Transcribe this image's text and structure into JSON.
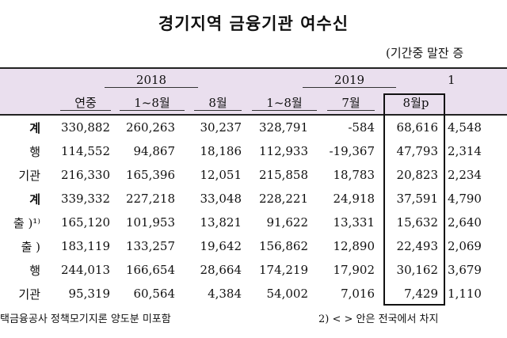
{
  "title": "경기지역 금융기관 여수신",
  "unit_text": "(기간중 말잔 증",
  "header": {
    "years": [
      "2018",
      "2019",
      "1"
    ],
    "columns": [
      "연중",
      "1~8월",
      "8월",
      "1~8월",
      "7월",
      "8월p"
    ]
  },
  "rows": [
    {
      "label": "계",
      "values": [
        "330,882",
        "260,263",
        "30,237",
        "328,791",
        "-584",
        "68,616"
      ],
      "last": "4,548"
    },
    {
      "label": "행",
      "values": [
        "114,552",
        "94,867",
        "18,186",
        "112,933",
        "-19,367",
        "47,793"
      ],
      "last": "2,314"
    },
    {
      "label": "기관",
      "values": [
        "216,330",
        "165,396",
        "12,051",
        "215,858",
        "18,783",
        "20,823"
      ],
      "last": "2,234"
    },
    {
      "label": "계",
      "values": [
        "339,332",
        "227,218",
        "33,048",
        "228,221",
        "24,918",
        "37,591"
      ],
      "last": "4,790"
    },
    {
      "label": "출 )¹⁾",
      "values": [
        "165,120",
        "101,953",
        "13,821",
        "91,622",
        "13,331",
        "15,632"
      ],
      "last": "2,640"
    },
    {
      "label": "출 )",
      "values": [
        "183,119",
        "133,257",
        "19,642",
        "156,862",
        "12,890",
        "22,493"
      ],
      "last": "2,069"
    },
    {
      "label": "행",
      "values": [
        "244,013",
        "166,654",
        "28,664",
        "174,219",
        "17,902",
        "30,162"
      ],
      "last": "3,679"
    },
    {
      "label": "기관",
      "values": [
        "95,319",
        "60,564",
        "4,384",
        "54,002",
        "7,016",
        "7,429"
      ],
      "last": "1,110"
    }
  ],
  "footnotes": {
    "note1": "택금융공사 정책모기지론 양도분 미포함",
    "note2": "2) < > 안은 전국에서 차지"
  }
}
